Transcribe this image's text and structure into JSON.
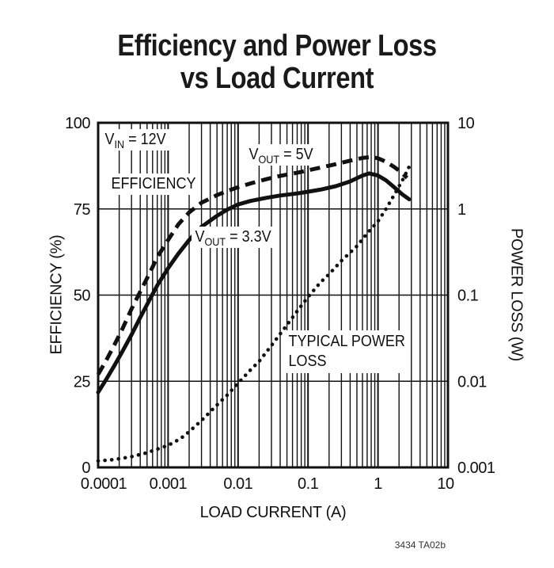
{
  "page": {
    "background": "#ffffff",
    "ink": "#111111"
  },
  "title": {
    "line1": "Efficiency and Power Loss",
    "line2": "vs Load Current"
  },
  "annotations": {
    "vin": {
      "main": "V",
      "sub": "IN",
      "rest": " = 12V"
    },
    "efficiency": "EFFICIENCY",
    "vout5": {
      "main": "V",
      "sub": "OUT",
      "rest": " = 5V"
    },
    "vout33": {
      "main": "V",
      "sub": "OUT",
      "rest": " = 3.3V"
    },
    "typical_power_loss": {
      "line1": "TYPICAL POWER",
      "line2": "LOSS"
    }
  },
  "footer": {
    "label": "3434 TA02b"
  },
  "chart_data": {
    "type": "line",
    "title": "Efficiency and Power Loss vs Load Current",
    "conditions": "VIN = 12V",
    "x_axis": {
      "label": "LOAD CURRENT (A)",
      "scale": "log",
      "min": 0.0001,
      "max": 10,
      "ticks": [
        {
          "v": 0.0001,
          "label": "0.0001"
        },
        {
          "v": 0.001,
          "label": "0.001"
        },
        {
          "v": 0.01,
          "label": "0.01"
        },
        {
          "v": 0.1,
          "label": "0.1"
        },
        {
          "v": 1,
          "label": "1"
        },
        {
          "v": 10,
          "label": "10"
        }
      ]
    },
    "y_axis_left": {
      "label": "EFFICIENCY (%)",
      "scale": "linear",
      "min": 0,
      "max": 100,
      "ticks": [
        {
          "v": 100,
          "label": "100"
        },
        {
          "v": 75,
          "label": "75"
        },
        {
          "v": 50,
          "label": "50"
        },
        {
          "v": 25,
          "label": "25"
        },
        {
          "v": 0,
          "label": "0"
        }
      ]
    },
    "y_axis_right": {
      "label": "POWER LOSS (W)",
      "scale": "log",
      "min": 0.001,
      "max": 10,
      "ticks": [
        {
          "v": 10,
          "label": "10"
        },
        {
          "v": 1,
          "label": "1"
        },
        {
          "v": 0.1,
          "label": "0.1"
        },
        {
          "v": 0.01,
          "label": "0.01"
        },
        {
          "v": 0.001,
          "label": "0.001"
        }
      ]
    },
    "grid": {
      "horizontal_lines_pct": [
        25,
        50,
        75
      ],
      "vertical": "log minor lines 2-9 each decade, major line each decade"
    },
    "series": [
      {
        "name": "VOUT = 5V",
        "role": "efficiency",
        "axis": "left",
        "style": "dashed",
        "points": [
          [
            0.0001,
            27
          ],
          [
            0.00013,
            31
          ],
          [
            0.00017,
            35.5
          ],
          [
            0.00022,
            40
          ],
          [
            0.0003,
            46
          ],
          [
            0.0004,
            51
          ],
          [
            0.00055,
            56.5
          ],
          [
            0.0007,
            61
          ],
          [
            0.001,
            66
          ],
          [
            0.0014,
            70.5
          ],
          [
            0.002,
            74
          ],
          [
            0.003,
            76.8
          ],
          [
            0.005,
            79
          ],
          [
            0.007,
            80.2
          ],
          [
            0.01,
            81.3
          ],
          [
            0.015,
            82.4
          ],
          [
            0.025,
            83.6
          ],
          [
            0.04,
            84.6
          ],
          [
            0.07,
            85.5
          ],
          [
            0.1,
            86.2
          ],
          [
            0.15,
            87
          ],
          [
            0.25,
            88
          ],
          [
            0.4,
            89
          ],
          [
            0.6,
            89.8
          ],
          [
            0.8,
            90.1
          ],
          [
            1,
            89.7
          ],
          [
            1.3,
            88.7
          ],
          [
            1.7,
            87.2
          ],
          [
            2.1,
            85.8
          ],
          [
            2.6,
            84
          ]
        ]
      },
      {
        "name": "VOUT = 3.3V",
        "role": "efficiency",
        "axis": "left",
        "style": "solid",
        "points": [
          [
            0.0001,
            21.8
          ],
          [
            0.00013,
            25.5
          ],
          [
            0.00017,
            29.5
          ],
          [
            0.00022,
            33.5
          ],
          [
            0.0003,
            38.5
          ],
          [
            0.0004,
            43.5
          ],
          [
            0.00055,
            48.8
          ],
          [
            0.0007,
            52.8
          ],
          [
            0.001,
            57.8
          ],
          [
            0.0014,
            62
          ],
          [
            0.002,
            66
          ],
          [
            0.003,
            69.8
          ],
          [
            0.005,
            73
          ],
          [
            0.007,
            74.8
          ],
          [
            0.01,
            76.3
          ],
          [
            0.015,
            77.3
          ],
          [
            0.025,
            78.2
          ],
          [
            0.04,
            78.9
          ],
          [
            0.07,
            79.5
          ],
          [
            0.1,
            80
          ],
          [
            0.15,
            80.6
          ],
          [
            0.25,
            81.6
          ],
          [
            0.4,
            83
          ],
          [
            0.6,
            84.7
          ],
          [
            0.75,
            85.3
          ],
          [
            1,
            84.7
          ],
          [
            1.3,
            83.3
          ],
          [
            1.7,
            81.3
          ],
          [
            2.2,
            79.3
          ],
          [
            2.8,
            77.8
          ]
        ]
      },
      {
        "name": "TYPICAL POWER LOSS",
        "role": "power-loss",
        "axis": "right",
        "style": "dotted",
        "points": [
          [
            0.0001,
            0.00119
          ],
          [
            0.00015,
            0.00122
          ],
          [
            0.0002,
            0.00126
          ],
          [
            0.0003,
            0.00133
          ],
          [
            0.0005,
            0.00148
          ],
          [
            0.0007,
            0.00163
          ],
          [
            0.001,
            0.0018
          ],
          [
            0.0015,
            0.00215
          ],
          [
            0.002,
            0.0026
          ],
          [
            0.003,
            0.0035
          ],
          [
            0.005,
            0.0053
          ],
          [
            0.007,
            0.0069
          ],
          [
            0.01,
            0.0095
          ],
          [
            0.015,
            0.0135
          ],
          [
            0.02,
            0.017
          ],
          [
            0.03,
            0.026
          ],
          [
            0.05,
            0.045
          ],
          [
            0.07,
            0.065
          ],
          [
            0.1,
            0.095
          ],
          [
            0.15,
            0.14
          ],
          [
            0.2,
            0.175
          ],
          [
            0.3,
            0.25
          ],
          [
            0.5,
            0.37
          ],
          [
            0.7,
            0.52
          ],
          [
            1,
            0.72
          ],
          [
            1.3,
            1.0
          ],
          [
            1.7,
            1.45
          ],
          [
            2.2,
            2.1
          ],
          [
            2.9,
            3.3
          ]
        ]
      }
    ]
  }
}
